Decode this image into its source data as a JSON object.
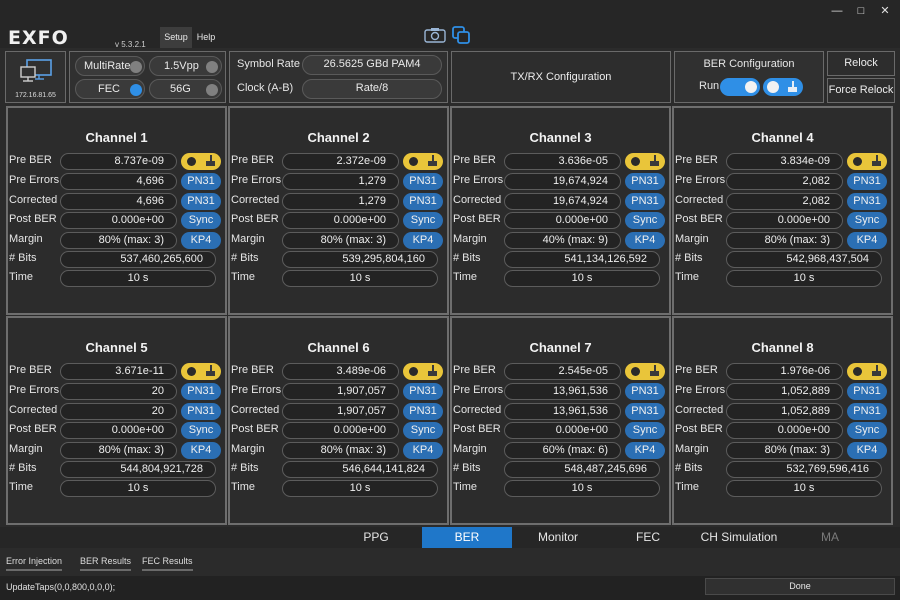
{
  "app": {
    "logo": "EXFO",
    "version": "v 5.3.2.1",
    "menu": [
      "Setup",
      "Help"
    ],
    "window_controls": [
      "—",
      "□",
      "✕"
    ]
  },
  "device": {
    "ip": "172.16.81.65"
  },
  "controls": {
    "multirate_label": "MultiRate",
    "multirate_on": false,
    "vpp_label": "1.5Vpp",
    "fec_label": "FEC",
    "fec_on": true,
    "rate_label": "56G",
    "symbol_rate_label": "Symbol Rate",
    "symbol_rate_value": "26.5625 GBd PAM4",
    "clock_label": "Clock (A-B)",
    "clock_value": "Rate/8",
    "txrx_label": "TX/RX Configuration",
    "ber_config_label": "BER Configuration",
    "run_label": "Run",
    "relock_label": "Relock",
    "force_relock_label": "Force Relock"
  },
  "row_labels": [
    "Pre BER",
    "Pre Errors",
    "Corrected",
    "Post BER",
    "Margin",
    "# Bits",
    "Time"
  ],
  "channels": [
    {
      "title": "Channel 1",
      "pre_ber": "8.737e-09",
      "pre_errors": "4,696",
      "corrected": "4,696",
      "post_ber": "0.000e+00",
      "margin": "80% (max: 3)",
      "bits": "537,460,265,600",
      "time": "10 s",
      "pattern1": "PN31",
      "pattern2": "PN31",
      "sync": "Sync",
      "mode": "KP4"
    },
    {
      "title": "Channel 2",
      "pre_ber": "2.372e-09",
      "pre_errors": "1,279",
      "corrected": "1,279",
      "post_ber": "0.000e+00",
      "margin": "80% (max: 3)",
      "bits": "539,295,804,160",
      "time": "10 s",
      "pattern1": "PN31",
      "pattern2": "PN31",
      "sync": "Sync",
      "mode": "KP4"
    },
    {
      "title": "Channel 3",
      "pre_ber": "3.636e-05",
      "pre_errors": "19,674,924",
      "corrected": "19,674,924",
      "post_ber": "0.000e+00",
      "margin": "40% (max: 9)",
      "bits": "541,134,126,592",
      "time": "10 s",
      "pattern1": "PN31",
      "pattern2": "PN31",
      "sync": "Sync",
      "mode": "KP4"
    },
    {
      "title": "Channel 4",
      "pre_ber": "3.834e-09",
      "pre_errors": "2,082",
      "corrected": "2,082",
      "post_ber": "0.000e+00",
      "margin": "80% (max: 3)",
      "bits": "542,968,437,504",
      "time": "10 s",
      "pattern1": "PN31",
      "pattern2": "PN31",
      "sync": "Sync",
      "mode": "KP4"
    },
    {
      "title": "Channel 5",
      "pre_ber": "3.671e-11",
      "pre_errors": "20",
      "corrected": "20",
      "post_ber": "0.000e+00",
      "margin": "80% (max: 3)",
      "bits": "544,804,921,728",
      "time": "10 s",
      "pattern1": "PN31",
      "pattern2": "PN31",
      "sync": "Sync",
      "mode": "KP4"
    },
    {
      "title": "Channel 6",
      "pre_ber": "3.489e-06",
      "pre_errors": "1,907,057",
      "corrected": "1,907,057",
      "post_ber": "0.000e+00",
      "margin": "80% (max: 3)",
      "bits": "546,644,141,824",
      "time": "10 s",
      "pattern1": "PN31",
      "pattern2": "PN31",
      "sync": "Sync",
      "mode": "KP4"
    },
    {
      "title": "Channel 7",
      "pre_ber": "2.545e-05",
      "pre_errors": "13,961,536",
      "corrected": "13,961,536",
      "post_ber": "0.000e+00",
      "margin": "60% (max: 6)",
      "bits": "548,487,245,696",
      "time": "10 s",
      "pattern1": "PN31",
      "pattern2": "PN31",
      "sync": "Sync",
      "mode": "KP4"
    },
    {
      "title": "Channel 8",
      "pre_ber": "1.976e-06",
      "pre_errors": "1,052,889",
      "corrected": "1,052,889",
      "post_ber": "0.000e+00",
      "margin": "80% (max: 3)",
      "bits": "532,769,596,416",
      "time": "10 s",
      "pattern1": "PN31",
      "pattern2": "PN31",
      "sync": "Sync",
      "mode": "KP4"
    }
  ],
  "tabs": [
    {
      "label": "PPG",
      "active": false,
      "disabled": false
    },
    {
      "label": "BER",
      "active": true,
      "disabled": false
    },
    {
      "label": "Monitor",
      "active": false,
      "disabled": false
    },
    {
      "label": "FEC",
      "active": false,
      "disabled": false
    },
    {
      "label": "CH Simulation",
      "active": false,
      "disabled": false
    },
    {
      "label": "MA",
      "active": false,
      "disabled": true
    }
  ],
  "subtabs": [
    "Error Injection",
    "BER Results",
    "FEC Results"
  ],
  "status": {
    "message": "UpdateTaps(0,0,800,0,0,0);",
    "state": "Done"
  },
  "colors": {
    "accent_blue": "#1f77c9",
    "tag_blue": "#2b6fb4",
    "toggle_yellow": "#e9c53a",
    "background": "#2b2b2b"
  },
  "icons": [
    "camera-icon",
    "copy-icon",
    "network-device-icon",
    "brush-icon"
  ]
}
